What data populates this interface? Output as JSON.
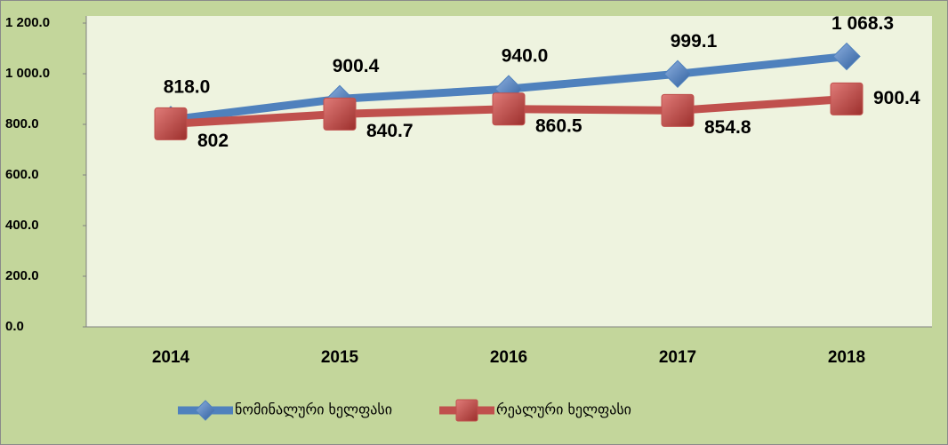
{
  "chart_data": {
    "type": "line",
    "categories": [
      "2014",
      "2015",
      "2016",
      "2017",
      "2018"
    ],
    "series": [
      {
        "name": "ნომინალური ხელფასი",
        "color": "#4f81bd",
        "marker": "diamond",
        "values": [
          818.0,
          900.4,
          940.0,
          999.1,
          1068.3
        ],
        "value_labels": [
          "818.0",
          "900.4",
          "940.0",
          "999.1",
          "1 068.3"
        ]
      },
      {
        "name": "რეალური ხელფასი",
        "color": "#c0504d",
        "marker": "square",
        "values": [
          802,
          840.7,
          860.5,
          854.8,
          900.4
        ],
        "value_labels": [
          "802",
          "840.7",
          "860.5",
          "854.8",
          "900.4"
        ]
      }
    ],
    "ylim": [
      0,
      1200
    ],
    "yticks": [
      {
        "value": 0,
        "label": "0.0"
      },
      {
        "value": 200,
        "label": "200.0"
      },
      {
        "value": 400,
        "label": "400.0"
      },
      {
        "value": 600,
        "label": "600.0"
      },
      {
        "value": 800,
        "label": "800.0"
      },
      {
        "value": 1000,
        "label": "1 000.0"
      },
      {
        "value": 1200,
        "label": "1 200.0"
      }
    ],
    "grid": false,
    "legend": "bottom"
  }
}
